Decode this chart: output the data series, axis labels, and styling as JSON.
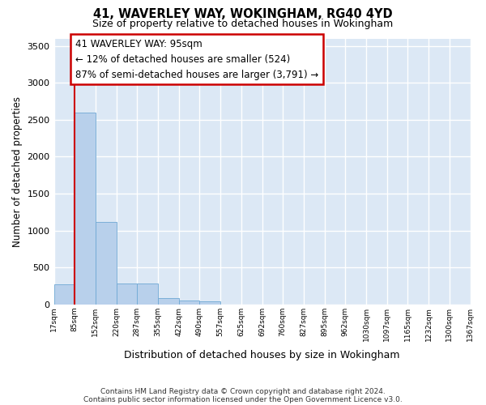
{
  "title1": "41, WAVERLEY WAY, WOKINGHAM, RG40 4YD",
  "title2": "Size of property relative to detached houses in Wokingham",
  "xlabel": "Distribution of detached houses by size in Wokingham",
  "ylabel": "Number of detached properties",
  "bar_values": [
    270,
    2600,
    1120,
    280,
    280,
    90,
    55,
    40,
    0,
    0,
    0,
    0,
    0,
    0,
    0,
    0,
    0,
    0,
    0,
    0
  ],
  "x_labels": [
    "17sqm",
    "85sqm",
    "152sqm",
    "220sqm",
    "287sqm",
    "355sqm",
    "422sqm",
    "490sqm",
    "557sqm",
    "625sqm",
    "692sqm",
    "760sqm",
    "827sqm",
    "895sqm",
    "962sqm",
    "1030sqm",
    "1097sqm",
    "1165sqm",
    "1232sqm",
    "1300sqm",
    "1367sqm"
  ],
  "bar_color": "#b8d0eb",
  "bar_edge_color": "#6fa8d4",
  "plot_bg_color": "#dce8f5",
  "fig_bg_color": "#ffffff",
  "grid_color": "#ffffff",
  "vline_x": 0.5,
  "vline_color": "#cc0000",
  "annotation_text": "41 WAVERLEY WAY: 95sqm\n← 12% of detached houses are smaller (524)\n87% of semi-detached houses are larger (3,791) →",
  "annotation_box_facecolor": "#ffffff",
  "annotation_box_edgecolor": "#cc0000",
  "ylim": [
    0,
    3600
  ],
  "yticks": [
    0,
    500,
    1000,
    1500,
    2000,
    2500,
    3000,
    3500
  ],
  "footnote1": "Contains HM Land Registry data © Crown copyright and database right 2024.",
  "footnote2": "Contains public sector information licensed under the Open Government Licence v3.0."
}
